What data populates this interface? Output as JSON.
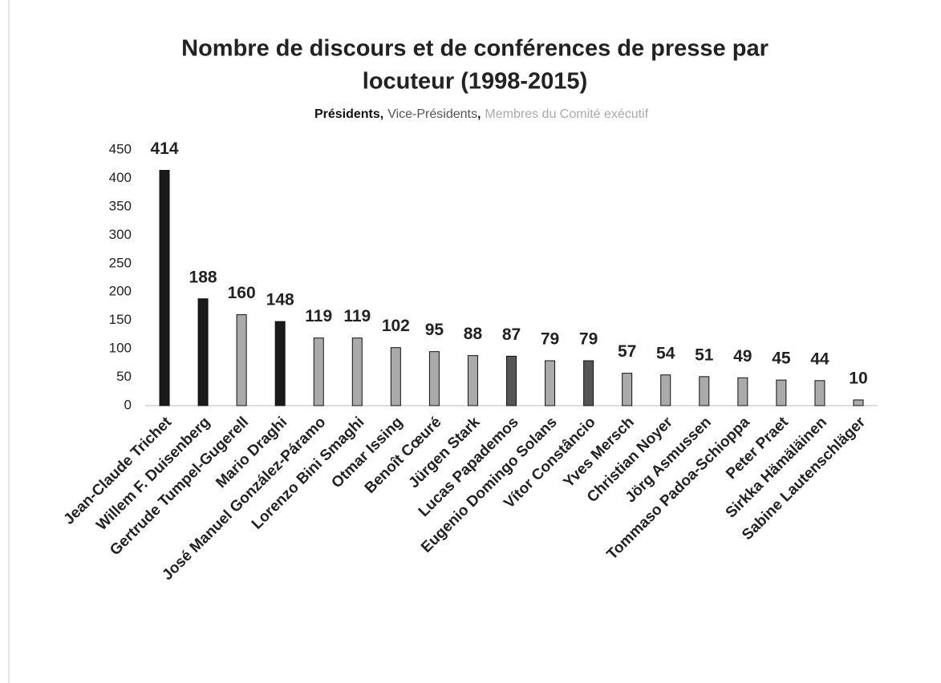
{
  "chart_data": {
    "type": "bar",
    "title": [
      "Nombre de discours et de conférences de presse par",
      "locuteur (1998-2015)"
    ],
    "subtitle_parts": [
      {
        "text": "Présidents,",
        "color": "#111111",
        "bold": true
      },
      {
        "text": "Vice-Présidents",
        "color": "#555555",
        "bold": false
      },
      {
        "text": ",",
        "color": "#111111",
        "bold": true
      },
      {
        "text": "Membres  du Comité exécutif",
        "color": "#aaaaaa",
        "bold": false
      }
    ],
    "categories": [
      "Jean-Claude Trichet",
      "Willem F. Duisenberg",
      "Gertrude Tumpel-Gugerell",
      "Mario Draghi",
      "José Manuel González-Páramo",
      "Lorenzo Bini Smaghi",
      "Otmar Issing",
      "Benoît Cœuré",
      "Jürgen Stark",
      "Lucas Papademos",
      "Eugenio Domingo Solans",
      "Vítor Constâncio",
      "Yves Mersch",
      "Christian Noyer",
      "Jörg Asmussen",
      "Tommaso Padoa-Schioppa",
      "Peter Praet",
      "Sirkka Hämäläinen",
      "Sabine Lautenschläger"
    ],
    "values": [
      414,
      188,
      160,
      148,
      119,
      119,
      102,
      95,
      88,
      87,
      79,
      79,
      57,
      54,
      51,
      49,
      45,
      44,
      10
    ],
    "colors": [
      "#1a1a1a",
      "#1a1a1a",
      "#aaaaaa",
      "#1a1a1a",
      "#aaaaaa",
      "#aaaaaa",
      "#aaaaaa",
      "#aaaaaa",
      "#aaaaaa",
      "#555555",
      "#aaaaaa",
      "#555555",
      "#aaaaaa",
      "#aaaaaa",
      "#aaaaaa",
      "#aaaaaa",
      "#aaaaaa",
      "#aaaaaa",
      "#aaaaaa"
    ],
    "ylim": [
      0,
      450
    ],
    "yticks": [
      0,
      50,
      100,
      150,
      200,
      250,
      300,
      350,
      400,
      450
    ],
    "grid": false
  }
}
